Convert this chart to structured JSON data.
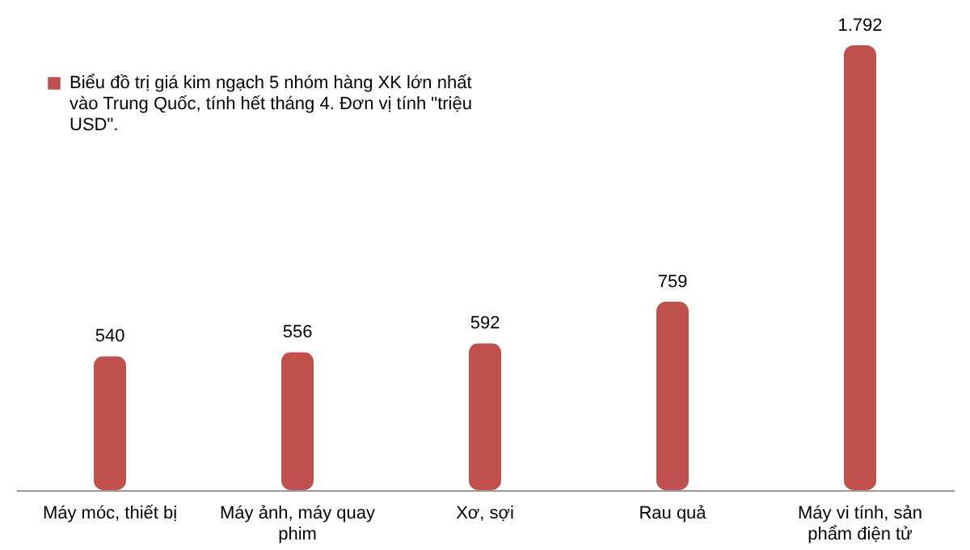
{
  "chart_data": {
    "type": "bar",
    "categories": [
      "Máy móc, thiết bị",
      "Máy ảnh, máy quay phim",
      "Xơ, sợi",
      "Rau quả",
      "Máy vi tính, sản phẩm điện tử"
    ],
    "series": [
      {
        "name": "Biểu đồ trị giá kim ngạch 5 nhóm hàng XK lớn nhất vào Trung Quốc, tính hết tháng 4. Đơn vị tính \"triệu USD\".",
        "color": "#c0504d",
        "values": [
          540,
          556,
          592,
          759,
          1792
        ],
        "value_labels": [
          "540",
          "556",
          "592",
          "759",
          "1.792"
        ]
      }
    ],
    "legend": "top left",
    "grid": false
  }
}
